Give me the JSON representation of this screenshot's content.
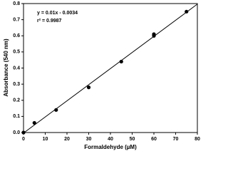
{
  "chart_data": {
    "type": "scatter",
    "x_label": "Formaldehyde (µM)",
    "y_label": "Absorbance (540 nm)",
    "annotations": [
      "y = 0.01x - 0.0034",
      "r² = 0.9987"
    ],
    "series": [
      {
        "color": "#000000",
        "x": [
          0,
          5,
          15,
          30,
          45,
          60,
          60,
          75
        ],
        "values": [
          0.0,
          0.06,
          0.14,
          0.28,
          0.44,
          0.6,
          0.61,
          0.75
        ]
      }
    ],
    "trendline": {
      "slope": 0.01,
      "intercept": -0.0034,
      "color": "#000000"
    },
    "xlim": [
      0,
      80
    ],
    "xticks": [
      0,
      10,
      20,
      30,
      40,
      50,
      60,
      70,
      80
    ],
    "ylim": [
      0,
      0.8
    ],
    "yticks": [
      {
        "value": 0,
        "label": "0.0"
      },
      0.1,
      0.2,
      0.3,
      0.4,
      0.5,
      0.6,
      0.7,
      0.8
    ],
    "grid": false
  }
}
